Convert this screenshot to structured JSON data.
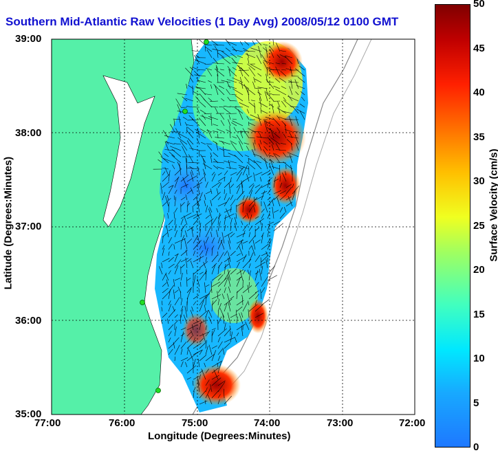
{
  "title": "Southern Mid-Atlantic Raw Velocities (1 Day Avg) 2008/05/12 0100 GMT",
  "axes": {
    "xlabel": "Longitude (Degrees:Minutes)",
    "ylabel": "Latitude (Degrees:Minutes)",
    "x_ticks": [
      "77:00",
      "76:00",
      "75:00",
      "74:00",
      "73:00",
      "72:00"
    ],
    "y_ticks": [
      "39:00",
      "38:00",
      "37:00",
      "36:00",
      "35:00"
    ],
    "x_range": [
      -77,
      -72
    ],
    "y_range": [
      35,
      39
    ]
  },
  "colorbar": {
    "label": "Surface Velocity (cm/s)",
    "ticks": [
      "50",
      "45",
      "40",
      "35",
      "30",
      "25",
      "20",
      "15",
      "10",
      "5",
      "0"
    ],
    "range": [
      0,
      50
    ]
  },
  "colors": {
    "land": "#55f0a8",
    "title": "#1010d0",
    "coast_sites": "#22dd22"
  }
}
